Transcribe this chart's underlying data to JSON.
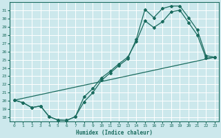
{
  "xlabel": "Humidex (Indice chaleur)",
  "bg_color": "#cce8ec",
  "grid_color": "#ffffff",
  "line_color": "#1a6b5e",
  "xlim": [
    -0.5,
    23.5
  ],
  "ylim": [
    17.5,
    32.0
  ],
  "xticks": [
    0,
    1,
    2,
    3,
    4,
    5,
    6,
    7,
    8,
    9,
    10,
    11,
    12,
    13,
    14,
    15,
    16,
    17,
    18,
    19,
    20,
    21,
    22,
    23
  ],
  "yticks": [
    18,
    19,
    20,
    21,
    22,
    23,
    24,
    25,
    26,
    27,
    28,
    29,
    30,
    31
  ],
  "curve1_x": [
    0,
    1,
    2,
    3,
    4,
    5,
    6,
    7,
    8,
    9,
    10,
    11,
    12,
    13,
    14,
    15,
    16,
    17,
    18,
    19,
    20,
    21,
    22,
    23
  ],
  "curve1_y": [
    20.1,
    19.8,
    19.2,
    19.4,
    18.1,
    17.7,
    17.65,
    18.1,
    19.9,
    21.0,
    22.5,
    23.4,
    24.3,
    25.1,
    27.5,
    31.1,
    30.1,
    31.2,
    31.5,
    31.5,
    30.1,
    28.6,
    25.5,
    25.3
  ],
  "curve2_x": [
    0,
    1,
    2,
    3,
    4,
    5,
    6,
    7,
    8,
    9,
    10,
    11,
    12,
    13,
    14,
    15,
    16,
    17,
    18,
    19,
    20,
    21,
    22,
    23
  ],
  "curve2_y": [
    20.1,
    19.8,
    19.2,
    19.4,
    18.1,
    17.7,
    17.65,
    18.1,
    20.5,
    21.5,
    22.8,
    23.6,
    24.5,
    25.3,
    27.2,
    29.7,
    28.9,
    29.6,
    30.8,
    31.0,
    29.5,
    28.0,
    25.2,
    25.3
  ],
  "curve3_x": [
    0,
    23
  ],
  "curve3_y": [
    20.1,
    25.3
  ]
}
